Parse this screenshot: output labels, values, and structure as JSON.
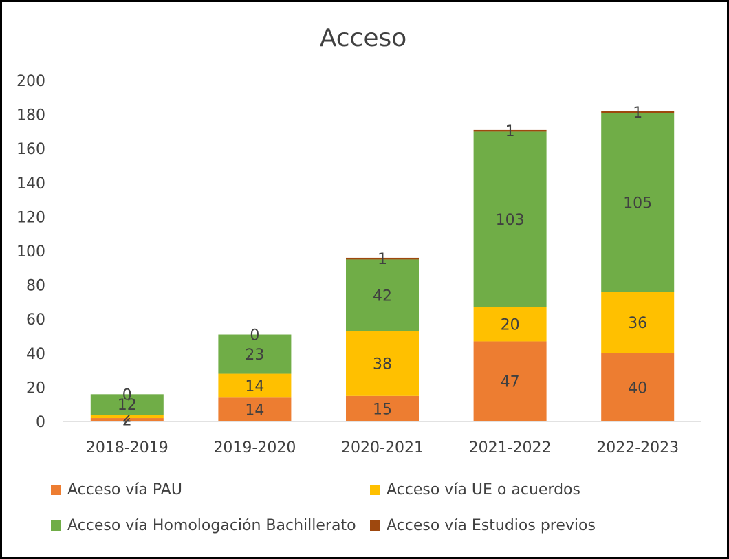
{
  "chart_data": {
    "type": "bar",
    "stacked": true,
    "title": "Acceso",
    "categories": [
      "2018-2019",
      "2019-2020",
      "2020-2021",
      "2021-2022",
      "2022-2023"
    ],
    "series": [
      {
        "name": "Acceso vía PAU",
        "color": "#ED7D31",
        "values": [
          2,
          14,
          15,
          47,
          40
        ]
      },
      {
        "name": "Acceso vía UE o acuerdos",
        "color": "#FFC000",
        "values": [
          2,
          14,
          38,
          20,
          36
        ]
      },
      {
        "name": "Acceso vía Homologación Bachillerato",
        "color": "#70AD47",
        "values": [
          12,
          23,
          42,
          103,
          105
        ]
      },
      {
        "name": "Acceso vía Estudios previos",
        "color": "#9E480E",
        "values": [
          0,
          0,
          1,
          1,
          1
        ]
      }
    ],
    "y_ticks": [
      0,
      20,
      40,
      60,
      80,
      100,
      120,
      140,
      160,
      180,
      200
    ],
    "ylim": [
      0,
      200
    ],
    "grid": false,
    "legend_position": "bottom"
  }
}
